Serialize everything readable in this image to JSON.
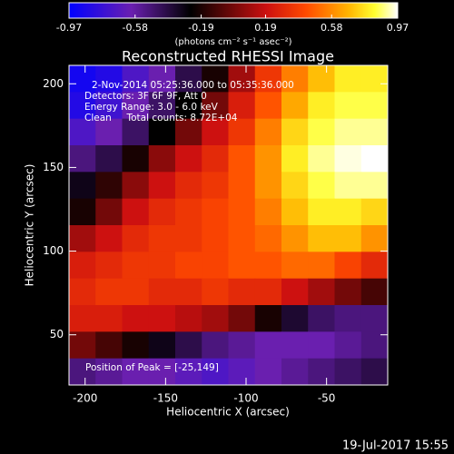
{
  "chart_data": {
    "type": "heatmap",
    "title": "Reconstructed RHESSI Image",
    "x_label": "Heliocentric X (arcsec)",
    "y_label": "Heliocentric Y (arcsec)",
    "xlim": [
      -210,
      -12
    ],
    "ylim": [
      20,
      211
    ],
    "xticks": [
      -200,
      -150,
      -100,
      -50
    ],
    "yticks": [
      50,
      100,
      150,
      200
    ],
    "colorbar": {
      "label": "(photons cm⁻² s⁻¹ asec⁻²)",
      "lim": [
        -0.97,
        0.97
      ],
      "ticks": [
        -0.97,
        -0.58,
        -0.19,
        0.19,
        0.58,
        0.97
      ]
    },
    "annotations": [
      "2-Nov-2014 05:25:36.000 to 05:35:36.000",
      "Detectors: 3F 6F 9F, Att 0",
      "Energy Range: 3.0 - 6.0 keV",
      "Clean     Total counts: 8.72E+04"
    ],
    "peak_label": "Position of Peak = [-25,149]",
    "footer": "19-Jul-2017 15:55",
    "z": [
      [
        -0.9,
        -0.85,
        -0.7,
        -0.6,
        -0.4,
        -0.2,
        0.1,
        0.35,
        0.55,
        0.7,
        0.8,
        0.8
      ],
      [
        -0.85,
        -0.75,
        -0.6,
        -0.45,
        -0.25,
        0.0,
        0.25,
        0.45,
        0.65,
        0.8,
        0.85,
        0.85
      ],
      [
        -0.7,
        -0.6,
        -0.45,
        -0.25,
        0.0,
        0.2,
        0.35,
        0.55,
        0.75,
        0.85,
        0.9,
        0.9
      ],
      [
        -0.5,
        -0.4,
        -0.2,
        0.05,
        0.2,
        0.3,
        0.45,
        0.6,
        0.8,
        0.9,
        0.95,
        0.97
      ],
      [
        -0.3,
        -0.15,
        0.05,
        0.2,
        0.3,
        0.35,
        0.45,
        0.6,
        0.75,
        0.85,
        0.9,
        0.9
      ],
      [
        -0.2,
        0.0,
        0.2,
        0.3,
        0.35,
        0.4,
        0.45,
        0.55,
        0.7,
        0.8,
        0.8,
        0.75
      ],
      [
        0.1,
        0.2,
        0.3,
        0.35,
        0.35,
        0.4,
        0.45,
        0.5,
        0.6,
        0.7,
        0.7,
        0.6
      ],
      [
        0.25,
        0.3,
        0.35,
        0.35,
        0.4,
        0.4,
        0.45,
        0.45,
        0.5,
        0.5,
        0.4,
        0.3
      ],
      [
        0.3,
        0.35,
        0.35,
        0.3,
        0.3,
        0.35,
        0.3,
        0.3,
        0.2,
        0.1,
        0.0,
        -0.1
      ],
      [
        0.25,
        0.25,
        0.2,
        0.2,
        0.15,
        0.1,
        0.0,
        -0.2,
        -0.35,
        -0.45,
        -0.5,
        -0.5
      ],
      [
        0.0,
        -0.1,
        -0.2,
        -0.3,
        -0.4,
        -0.5,
        -0.55,
        -0.6,
        -0.6,
        -0.6,
        -0.55,
        -0.5
      ],
      [
        -0.5,
        -0.55,
        -0.6,
        -0.6,
        -0.65,
        -0.7,
        -0.65,
        -0.6,
        -0.55,
        -0.5,
        -0.45,
        -0.4
      ]
    ]
  }
}
